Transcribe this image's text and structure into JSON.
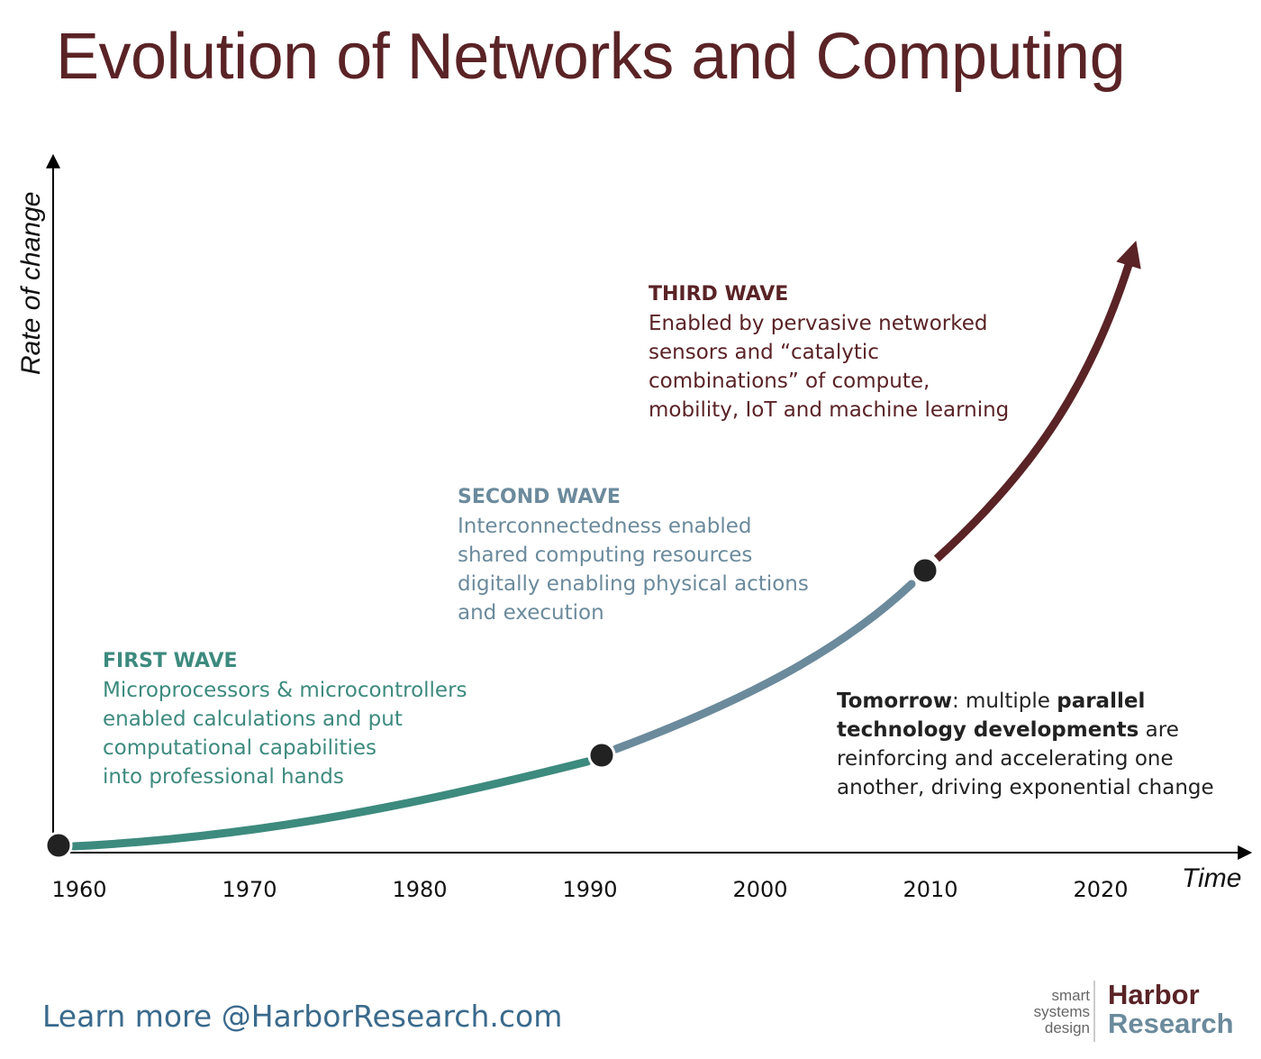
{
  "title": "Evolution of Networks and Computing",
  "y_axis_label": "Rate of change",
  "x_axis_label": "Time",
  "x_ticks": [
    "1960",
    "1970",
    "1980",
    "1990",
    "2000",
    "2010",
    "2020"
  ],
  "waves": [
    {
      "heading": "FIRST WAVE",
      "lines": [
        "Microprocessors & microcontrollers",
        "enabled calculations and put",
        "computational capabilities",
        "into professional hands"
      ],
      "color": "#3d8a7e"
    },
    {
      "heading": "SECOND WAVE",
      "lines": [
        "Interconnectedness enabled",
        "shared computing resources",
        "digitally enabling physical actions",
        "and execution"
      ],
      "color": "#6b8a9c"
    },
    {
      "heading": "THIRD WAVE",
      "lines": [
        "Enabled by pervasive networked",
        "sensors and “catalytic",
        "combinations” of compute,",
        "mobility, IoT and machine learning"
      ],
      "color": "#5a2326"
    }
  ],
  "tomorrow": {
    "bold1": "Tomorrow",
    "text1": ": multiple ",
    "bold2": "parallel",
    "bold3": "technology developments",
    "text2": " are",
    "line3": "reinforcing and accelerating one",
    "line4": "another, driving exponential change"
  },
  "milestones": [
    "1960",
    "1990",
    "2010"
  ],
  "footer_link": "Learn more @HarborResearch.com",
  "logo": {
    "tagline": [
      "smart",
      "systems",
      "design"
    ],
    "word1": "Harbor",
    "word2": "Research"
  }
}
